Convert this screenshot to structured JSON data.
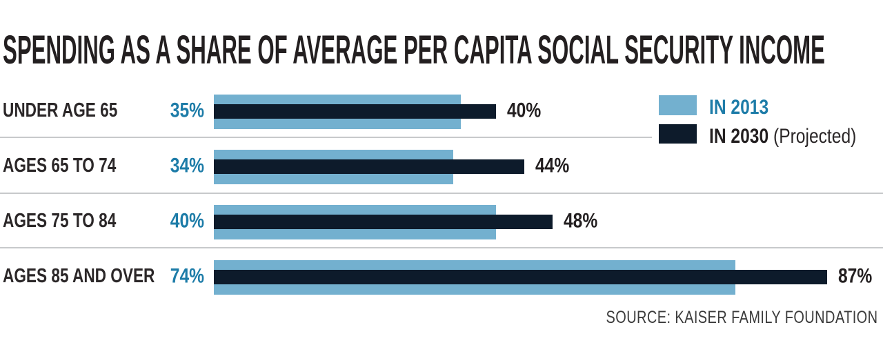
{
  "title": "SPENDING AS A SHARE OF AVERAGE PER CAPITA SOCIAL SECURITY INCOME",
  "legend": {
    "series1_label": "IN 2013",
    "series2_label": "IN 2030",
    "series2_note": "(Projected)"
  },
  "source": "SOURCE: KAISER FAMILY FOUNDATION",
  "colors": {
    "bar_2013": "#73b0cf",
    "bar_2030": "#0d1b2b",
    "value_2013_text": "#1d7ca8",
    "dark_text": "#231f20",
    "separator": "#c7c9cb",
    "background": "#ffffff"
  },
  "rows": [
    {
      "label": "UNDER AGE 65",
      "v2013": 35,
      "v2013_label": "35%",
      "v2030": 40,
      "v2030_label": "40%"
    },
    {
      "label": "AGES 65 TO 74",
      "v2013": 34,
      "v2013_label": "34%",
      "v2030": 44,
      "v2030_label": "44%"
    },
    {
      "label": "AGES 75 TO 84",
      "v2013": 40,
      "v2013_label": "40%",
      "v2030": 48,
      "v2030_label": "48%"
    },
    {
      "label": "AGES 85 AND OVER",
      "v2013": 74,
      "v2013_label": "74%",
      "v2030": 87,
      "v2030_label": "87%"
    }
  ],
  "chart_data": {
    "type": "bar",
    "orientation": "horizontal",
    "title": "SPENDING AS A SHARE OF AVERAGE PER CAPITA SOCIAL SECURITY INCOME",
    "categories": [
      "UNDER AGE 65",
      "AGES 65 TO 74",
      "AGES 75 TO 84",
      "AGES 85 AND OVER"
    ],
    "series": [
      {
        "name": "IN 2013",
        "values": [
          35,
          34,
          40,
          74
        ],
        "color": "#73b0cf"
      },
      {
        "name": "IN 2030 (Projected)",
        "values": [
          40,
          44,
          48,
          87
        ],
        "color": "#0d1b2b"
      }
    ],
    "unit": "%",
    "xlim": [
      0,
      95
    ],
    "grid": false,
    "legend_position": "top-right",
    "value_labels_shown": true,
    "source": "SOURCE: KAISER FAMILY FOUNDATION"
  }
}
